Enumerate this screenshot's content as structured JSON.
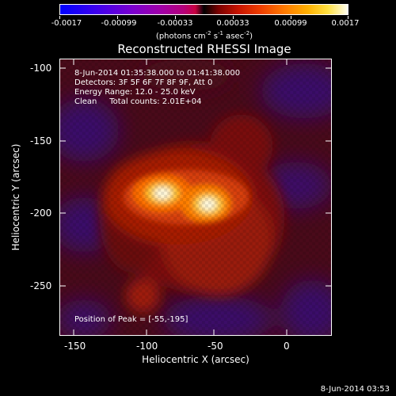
{
  "colorbar": {
    "labels": [
      "-0.0017",
      "-0.00099",
      "-0.00033",
      "0.00033",
      "0.00099",
      "0.0017"
    ],
    "units_main": "(photons cm",
    "units_exp1": "-2",
    "units_mid": " s",
    "units_exp2": "-1",
    "units_after": " asec",
    "units_exp3": "-2",
    "units_close": ")"
  },
  "title": "Reconstructed RHESSI Image",
  "annotations": {
    "time_range": "8-Jun-2014 01:35:38.000 to 01:41:38.000",
    "detectors": "Detectors: 3F 5F 6F 7F 8F 9F, Att 0",
    "energy_range": "Energy Range: 12.0 - 25.0 keV",
    "clean": "Clean     Total counts: 2.01E+04",
    "peak": "Position of Peak = [-55,-195]"
  },
  "axes": {
    "xlabel": "Heliocentric X (arcsec)",
    "ylabel": "Heliocentric Y (arcsec)",
    "xticks": [
      "-150",
      "-100",
      "-50",
      "0"
    ],
    "yticks": [
      "-100",
      "-150",
      "-200",
      "-250"
    ]
  },
  "footer": {
    "timestamp": "8-Jun-2014 03:53"
  },
  "colors": {
    "background": "#000000",
    "foreground": "#ffffff",
    "negative_low": "#0000ff",
    "positive_high": "#ffffff"
  }
}
